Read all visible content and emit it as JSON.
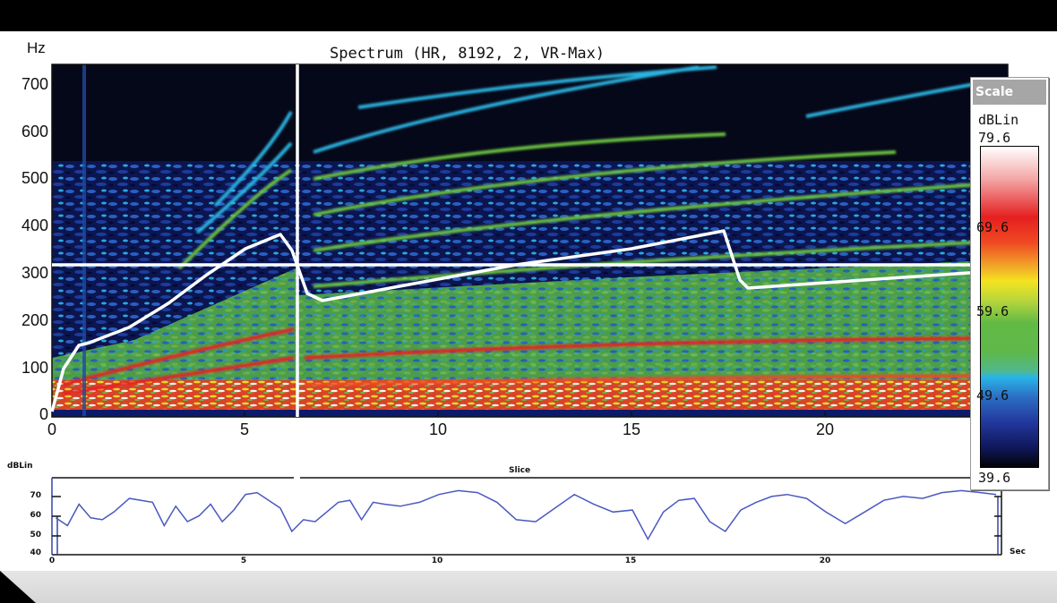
{
  "header": {
    "title": "Spectrum (HR, 8192, 2, VR-Max)",
    "y_unit": "Hz"
  },
  "scale_panel": {
    "title": "Scale",
    "unit": "dBLin",
    "values": [
      "79.6",
      "69.6",
      "59.6",
      "49.6",
      "39.6"
    ]
  },
  "lower_panel": {
    "y_unit": "dBLin",
    "title": "Slice",
    "x_unit": "Sec",
    "yticks": [
      "70",
      "60",
      "50",
      "40"
    ],
    "xticks": [
      "0",
      "5",
      "10",
      "15",
      "20"
    ]
  },
  "chart_data": [
    {
      "type": "heatmap",
      "title": "Spectrum (HR, 8192, 2, VR-Max)",
      "xlabel": "Sec",
      "ylabel": "Hz",
      "xlim": [
        0,
        24.5
      ],
      "ylim": [
        0,
        730
      ],
      "xticks": [
        "0",
        "5",
        "10",
        "15",
        "20"
      ],
      "yticks": [
        "0",
        "100",
        "200",
        "300",
        "400",
        "500",
        "600",
        "700"
      ],
      "colorbar": {
        "unit": "dBLin",
        "min": 39.6,
        "max": 79.6,
        "ticks": [
          79.6,
          69.6,
          59.6,
          49.6,
          39.6
        ]
      },
      "cursor": {
        "time_sec": 6.35,
        "freq_hz": 320
      },
      "overlay_line": {
        "name": "pitch contour",
        "x": [
          0,
          0.3,
          0.7,
          1.0,
          2.0,
          3.0,
          4.0,
          5.0,
          5.9,
          6.2,
          6.6,
          7.0,
          9.0,
          12.0,
          15.0,
          17.4,
          17.8,
          18.0,
          20.0,
          24.5
        ],
        "y": [
          10,
          100,
          150,
          160,
          190,
          240,
          300,
          355,
          385,
          350,
          260,
          245,
          275,
          320,
          355,
          390,
          290,
          270,
          280,
          310
        ]
      }
    },
    {
      "type": "line",
      "title": "Slice",
      "xlabel": "Sec",
      "ylabel": "dBLin",
      "xlim": [
        0,
        24.5
      ],
      "ylim": [
        40,
        75
      ],
      "x": [
        0.1,
        0.4,
        0.7,
        1.0,
        1.3,
        1.6,
        2.0,
        2.3,
        2.6,
        2.9,
        3.2,
        3.5,
        3.8,
        4.1,
        4.4,
        4.7,
        5.0,
        5.3,
        5.6,
        5.9,
        6.2,
        6.5,
        6.8,
        7.1,
        7.4,
        7.7,
        8.0,
        8.3,
        8.6,
        9.0,
        9.5,
        10.0,
        10.5,
        11.0,
        11.5,
        12.0,
        12.5,
        13.0,
        13.5,
        14.0,
        14.5,
        15.0,
        15.4,
        15.8,
        16.2,
        16.6,
        17.0,
        17.4,
        17.8,
        18.2,
        18.6,
        19.0,
        19.5,
        20.0,
        20.5,
        21.0,
        21.5,
        22.0,
        22.5,
        23.0,
        23.5,
        24.0,
        24.4
      ],
      "values": [
        59,
        55,
        66,
        59,
        58,
        62,
        69,
        68,
        67,
        55,
        65,
        57,
        60,
        66,
        57,
        63,
        71,
        72,
        68,
        64,
        52,
        58,
        57,
        62,
        67,
        68,
        58,
        67,
        66,
        65,
        67,
        71,
        73,
        72,
        67,
        58,
        57,
        64,
        71,
        66,
        62,
        63,
        48,
        62,
        68,
        69,
        57,
        52,
        63,
        67,
        70,
        71,
        69,
        62,
        56,
        62,
        68,
        70,
        69,
        72,
        73,
        72,
        71
      ]
    }
  ]
}
